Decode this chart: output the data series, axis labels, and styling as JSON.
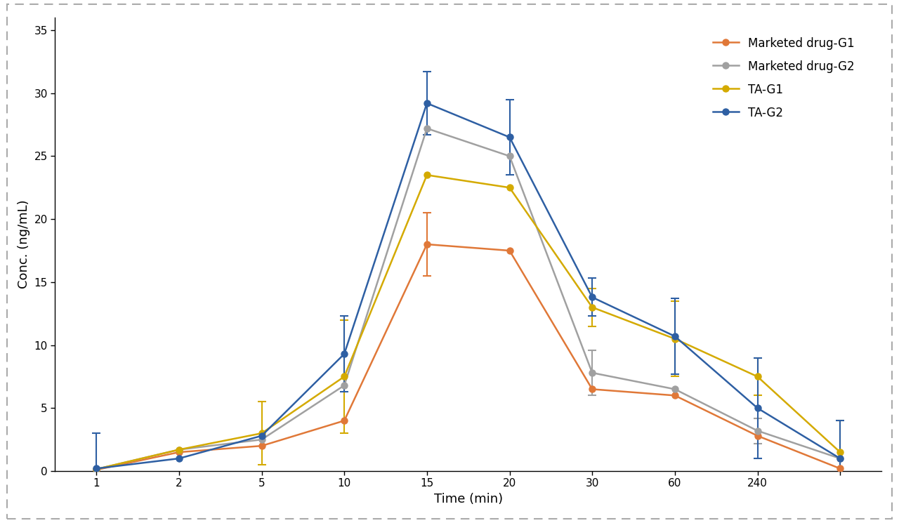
{
  "x_positions": [
    0,
    1,
    2,
    3,
    4,
    5,
    6,
    7,
    8,
    9
  ],
  "x_labels": [
    "1",
    "2",
    "5",
    "10",
    "15",
    "20",
    "30",
    "60",
    "240",
    ""
  ],
  "series": {
    "Marketed drug-G1": {
      "y": [
        0.1,
        1.5,
        2.0,
        4.0,
        18.0,
        17.5,
        6.5,
        6.0,
        2.8,
        0.2
      ],
      "yerr": [
        0.0,
        0.0,
        0.0,
        0.0,
        2.5,
        0.0,
        0.0,
        0.0,
        0.0,
        0.0
      ],
      "color": "#E07838",
      "marker": "o"
    },
    "Marketed drug-G2": {
      "y": [
        0.15,
        1.7,
        2.5,
        6.8,
        27.2,
        25.0,
        7.8,
        6.5,
        3.2,
        1.0
      ],
      "yerr": [
        0.0,
        0.0,
        0.0,
        0.0,
        0.0,
        0.0,
        1.8,
        0.0,
        1.0,
        0.0
      ],
      "color": "#A0A0A0",
      "marker": "o"
    },
    "TA-G1": {
      "y": [
        0.15,
        1.7,
        3.0,
        7.5,
        23.5,
        22.5,
        13.0,
        10.5,
        7.5,
        1.5
      ],
      "yerr": [
        0.0,
        0.0,
        2.5,
        4.5,
        0.0,
        0.0,
        1.5,
        3.0,
        1.5,
        2.5
      ],
      "color": "#D4AA00",
      "marker": "o"
    },
    "TA-G2": {
      "y": [
        0.2,
        1.0,
        2.8,
        9.3,
        29.2,
        26.5,
        13.8,
        10.7,
        5.0,
        1.0
      ],
      "yerr": [
        2.8,
        0.0,
        0.0,
        3.0,
        2.5,
        3.0,
        1.5,
        3.0,
        4.0,
        3.0
      ],
      "color": "#2E5FA3",
      "marker": "o"
    }
  },
  "xlabel": "Time (min)",
  "ylabel": "Conc. (ng/mL)",
  "ylim": [
    0,
    36
  ],
  "yticks": [
    0,
    5,
    10,
    15,
    20,
    25,
    30,
    35
  ],
  "legend_order": [
    "Marketed drug-G1",
    "Marketed drug-G2",
    "TA-G1",
    "TA-G2"
  ],
  "background_color": "#ffffff",
  "axis_fontsize": 13,
  "legend_fontsize": 12,
  "tick_fontsize": 11
}
